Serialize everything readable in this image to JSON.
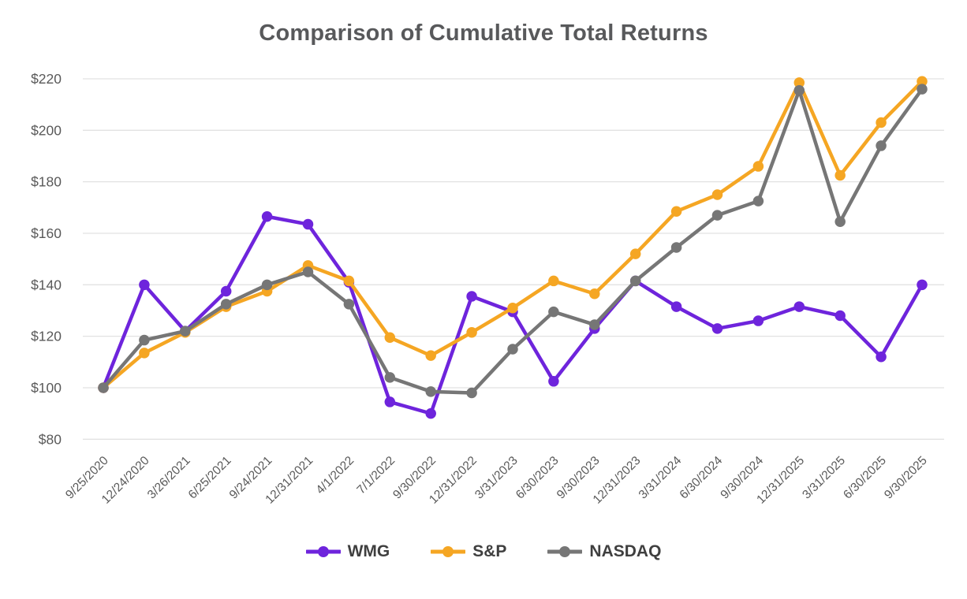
{
  "page": {
    "background": "#FFFFFF",
    "title_color": "#58595B",
    "grid_color": "#E2E2E2",
    "axis_label_color": "#595959",
    "legend_text_color": "#3F3F3F"
  },
  "chart_data": {
    "type": "line",
    "title": "Comparison of Cumulative Total Returns",
    "categories": [
      "9/25/2020",
      "12/24/2020",
      "3/26/2021",
      "6/25/2021",
      "9/24/2021",
      "12/31/2021",
      "4/1/2022",
      "7/1/2022",
      "9/30/2022",
      "12/31/2022",
      "3/31/2023",
      "6/30/2023",
      "9/30/2023",
      "12/31/2023",
      "3/31/2024",
      "6/30/2024",
      "9/30/2024",
      "12/31/2025",
      "3/31/2025",
      "6/30/2025",
      "9/30/2025"
    ],
    "series": [
      {
        "name": "WMG",
        "color": "#6E24DC",
        "values": [
          100,
          140,
          122,
          137.5,
          166.5,
          163.5,
          141,
          94.5,
          90,
          135.5,
          129.5,
          102.5,
          123,
          141.5,
          131.5,
          123,
          126,
          131.5,
          128,
          112,
          140
        ]
      },
      {
        "name": "S&P",
        "color": "#F5A623",
        "values": [
          100,
          113.5,
          121.5,
          131.5,
          137.5,
          147.5,
          141.5,
          119.5,
          112.5,
          121.5,
          131,
          141.5,
          136.5,
          152,
          168.5,
          175,
          186,
          218.5,
          182.5,
          203,
          219
        ]
      },
      {
        "name": "NASDAQ",
        "color": "#767676",
        "values": [
          100,
          118.5,
          122,
          132.5,
          140,
          145,
          132.5,
          104,
          98.5,
          98,
          115,
          129.5,
          124.5,
          141.5,
          154.5,
          167,
          172.5,
          215.5,
          164.5,
          194,
          216
        ]
      }
    ],
    "yticks": [
      {
        "value": 220,
        "label": "$220"
      },
      {
        "value": 200,
        "label": "$200"
      },
      {
        "value": 180,
        "label": "$180"
      },
      {
        "value": 160,
        "label": "$160"
      },
      {
        "value": 140,
        "label": "$140"
      },
      {
        "value": 120,
        "label": "$120"
      },
      {
        "value": 100,
        "label": "$100"
      },
      {
        "value": 80,
        "label": "$80"
      }
    ],
    "ylim": [
      80,
      220
    ],
    "grid": "horizontal",
    "legend_position": "bottom",
    "x_label_rotation_deg": 45
  }
}
